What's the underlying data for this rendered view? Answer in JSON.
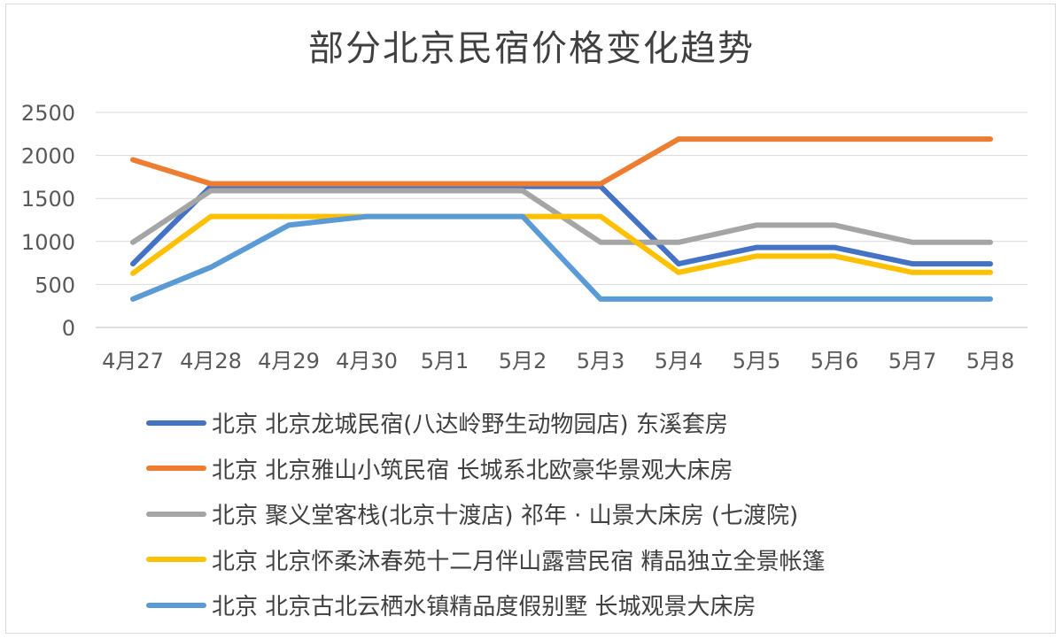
{
  "chart_data": {
    "type": "line",
    "title": "部分北京民宿价格变化趋势",
    "categories": [
      "4月27",
      "4月28",
      "4月29",
      "4月30",
      "5月1",
      "5月2",
      "5月3",
      "5月4",
      "5月5",
      "5月6",
      "5月7",
      "5月8"
    ],
    "ylim": [
      0,
      2500
    ],
    "yticks": [
      "0",
      "500",
      "1000",
      "1500",
      "2000",
      "2500"
    ],
    "grid": true,
    "legend_position": "bottom",
    "series": [
      {
        "name": "北京 北京龙城民宿(八达岭野生动物园店) 东溪套房",
        "color": "#4472c4",
        "values": [
          740,
          1640,
          1640,
          1640,
          1640,
          1640,
          1640,
          740,
          930,
          930,
          740,
          740
        ]
      },
      {
        "name": "北京 北京雅山小筑民宿 长城系北欧豪华景观大床房",
        "color": "#ed7d31",
        "values": [
          1950,
          1670,
          1670,
          1670,
          1670,
          1670,
          1670,
          2190,
          2190,
          2190,
          2190,
          2190
        ]
      },
      {
        "name": "北京 聚义堂客栈(北京十渡店) 祁年 · 山景大床房 (七渡院)",
        "color": "#a5a5a5",
        "values": [
          990,
          1590,
          1590,
          1590,
          1590,
          1590,
          990,
          990,
          1190,
          1190,
          990,
          990
        ]
      },
      {
        "name": "北京 北京怀柔沐春苑十二月伴山露营民宿 精品独立全景帐篷",
        "color": "#ffc000",
        "values": [
          630,
          1290,
          1290,
          1290,
          1290,
          1290,
          1290,
          640,
          830,
          830,
          640,
          640
        ]
      },
      {
        "name": "北京 北京古北云栖水镇精品度假别墅 长城观景大床房",
        "color": "#5b9bd5",
        "values": [
          330,
          700,
          1190,
          1290,
          1290,
          1290,
          330,
          330,
          330,
          330,
          330,
          330
        ]
      }
    ]
  }
}
